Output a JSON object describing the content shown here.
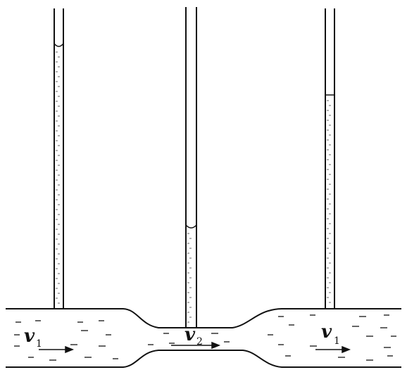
{
  "diagram": {
    "labels": {
      "left_velocity": "v",
      "left_subscript": "1",
      "middle_velocity": "v",
      "middle_subscript": "2",
      "right_velocity": "v",
      "right_subscript": "1"
    },
    "colors": {
      "line": "#111111",
      "background": "#ffffff"
    }
  }
}
